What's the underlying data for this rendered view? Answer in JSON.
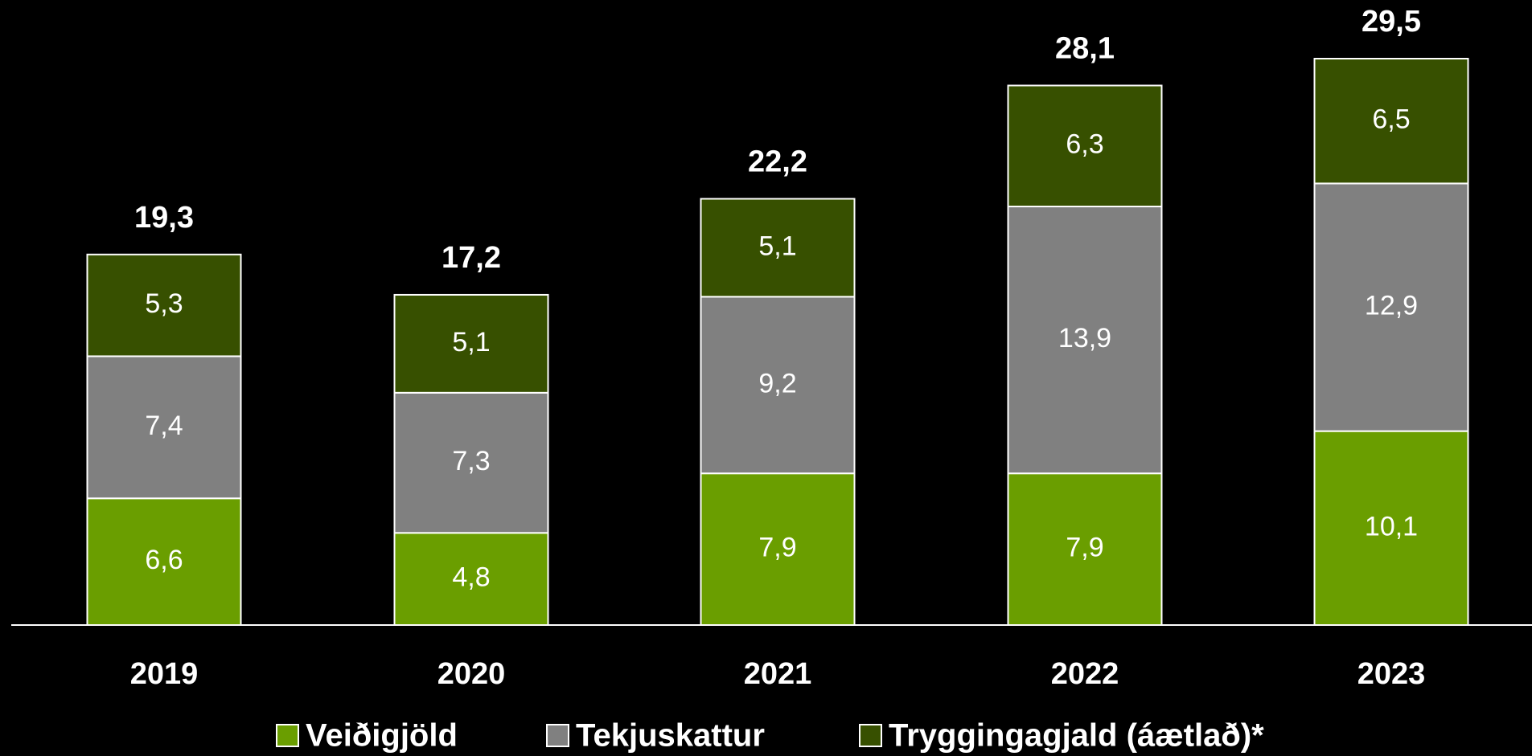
{
  "chart_data": {
    "type": "stacked_bar",
    "categories": [
      "2019",
      "2020",
      "2021",
      "2022",
      "2023"
    ],
    "series": [
      {
        "name": "Veiðigjöld",
        "color": "#6a9e00",
        "values": [
          6.6,
          4.8,
          7.9,
          7.9,
          10.1
        ],
        "value_labels": [
          "6,6",
          "4,8",
          "7,9",
          "7,9",
          "10,1"
        ]
      },
      {
        "name": "Tekjuskattur",
        "color": "#808080",
        "values": [
          7.4,
          7.3,
          9.2,
          13.9,
          12.9
        ],
        "value_labels": [
          "7,4",
          "7,3",
          "9,2",
          "13,9",
          "12,9"
        ]
      },
      {
        "name": "Tryggingagjald (áætlað)*",
        "color": "#375000",
        "values": [
          5.3,
          5.1,
          5.1,
          6.3,
          6.5
        ],
        "value_labels": [
          "5,3",
          "5,1",
          "5,1",
          "6,3",
          "6,5"
        ]
      }
    ],
    "totals": [
      19.3,
      17.2,
      22.2,
      28.1,
      29.5
    ],
    "total_labels": [
      "19,3",
      "17,2",
      "22,2",
      "28,1",
      "29,5"
    ],
    "legend": "bottom"
  }
}
